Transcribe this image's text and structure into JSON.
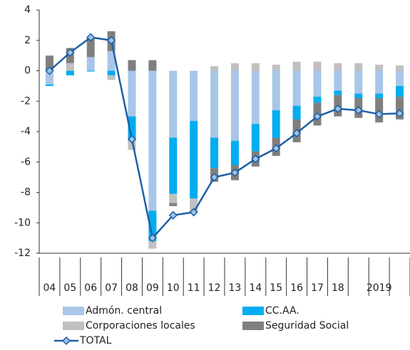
{
  "chart_data": {
    "type": "stacked-bar-line",
    "categories": [
      "04",
      "05",
      "06",
      "07",
      "08",
      "09",
      "10",
      "11",
      "12",
      "13",
      "14",
      "15",
      "16",
      "17",
      "18",
      null,
      "2019",
      null
    ],
    "series": [
      {
        "name": "Admón. central",
        "color": "#a9c6e8",
        "values": [
          -0.9,
          0,
          0.9,
          1.3,
          -3.0,
          -9.2,
          -4.4,
          -3.3,
          -4.4,
          -4.6,
          -3.5,
          -2.6,
          -2.3,
          -1.7,
          -1.3,
          -1.5,
          -1.5,
          -1.0
        ]
      },
      {
        "name": "CC.AA.",
        "color": "#00adef",
        "values": [
          -0.1,
          -0.3,
          -0.05,
          -0.3,
          -1.6,
          -2.0,
          -3.7,
          -5.1,
          -2.0,
          -1.6,
          -1.8,
          -1.8,
          -0.9,
          -0.4,
          -0.3,
          -0.3,
          -0.3,
          -0.7
        ]
      },
      {
        "name": "Corporaciones locales",
        "color": "#c0c0c0",
        "values": [
          0,
          0.5,
          0,
          -0.3,
          -0.6,
          -0.5,
          -0.6,
          -0.8,
          0.3,
          0.5,
          0.5,
          0.4,
          0.6,
          0.6,
          0.5,
          0.5,
          0.4,
          0.35
        ]
      },
      {
        "name": "Seguridad Social",
        "color": "#7f7f7f",
        "values": [
          1.0,
          1.0,
          1.3,
          1.3,
          0.7,
          0.7,
          -0.2,
          -0.1,
          -0.9,
          -1.0,
          -1.0,
          -1.2,
          -1.5,
          -1.5,
          -1.4,
          -1.3,
          -1.6,
          -1.5
        ]
      },
      {
        "name": "TOTAL",
        "color": "#1f5fa8",
        "kind": "line",
        "values": [
          0.0,
          1.2,
          2.2,
          2.0,
          -4.5,
          -11.0,
          -9.5,
          -9.3,
          -7.0,
          -6.7,
          -5.8,
          -5.1,
          -4.1,
          -3.0,
          -2.5,
          -2.6,
          -2.85,
          -2.8
        ]
      }
    ],
    "ylim": [
      -12,
      4
    ],
    "yticks": [
      -12,
      -10,
      -8,
      -6,
      -4,
      -2,
      0,
      2,
      4
    ],
    "grid": false
  }
}
